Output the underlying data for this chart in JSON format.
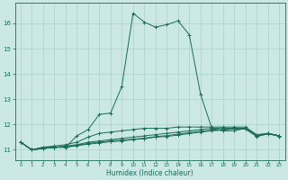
{
  "xlabel": "Humidex (Indice chaleur)",
  "ylabel": "",
  "bg_color": "#cce8e6",
  "grid_color": "#aad0ce",
  "line_color": "#1a6b5a",
  "xlim": [
    -0.5,
    23.5
  ],
  "ylim": [
    10.6,
    16.8
  ],
  "yticks": [
    11,
    12,
    13,
    14,
    15,
    16
  ],
  "xticks": [
    0,
    1,
    2,
    3,
    4,
    5,
    6,
    7,
    8,
    9,
    10,
    11,
    12,
    13,
    14,
    15,
    16,
    17,
    18,
    19,
    20,
    21,
    22,
    23
  ],
  "curve1_x": [
    0,
    1,
    2,
    3,
    4,
    5,
    6,
    7,
    8,
    9,
    10,
    11,
    12,
    13,
    14,
    15,
    16,
    17,
    18,
    19,
    20,
    21,
    22,
    23
  ],
  "curve1_y": [
    11.3,
    11.0,
    11.1,
    11.1,
    11.1,
    11.55,
    11.8,
    12.4,
    12.45,
    13.5,
    16.4,
    16.05,
    15.85,
    15.95,
    16.1,
    15.55,
    13.2,
    11.85,
    11.75,
    11.75,
    11.85,
    11.55,
    11.65,
    11.55
  ],
  "curve2_x": [
    0,
    1,
    2,
    3,
    4,
    5,
    6,
    7,
    8,
    9,
    10,
    11,
    12,
    13,
    14,
    15,
    16,
    17,
    18,
    19,
    20,
    21,
    22,
    23
  ],
  "curve2_y": [
    11.3,
    11.0,
    11.1,
    11.15,
    11.2,
    11.3,
    11.5,
    11.65,
    11.7,
    11.75,
    11.8,
    11.85,
    11.85,
    11.85,
    11.9,
    11.9,
    11.9,
    11.9,
    11.9,
    11.9,
    11.9,
    11.6,
    11.65,
    11.55
  ],
  "curve3_x": [
    0,
    1,
    2,
    3,
    4,
    5,
    6,
    7,
    8,
    9,
    10,
    11,
    12,
    13,
    14,
    15,
    16,
    17,
    18,
    19,
    20,
    21,
    22,
    23
  ],
  "curve3_y": [
    11.3,
    11.0,
    11.05,
    11.1,
    11.15,
    11.2,
    11.3,
    11.35,
    11.4,
    11.45,
    11.5,
    11.55,
    11.6,
    11.65,
    11.7,
    11.75,
    11.8,
    11.85,
    11.85,
    11.85,
    11.85,
    11.55,
    11.65,
    11.55
  ],
  "curve4_x": [
    0,
    1,
    2,
    3,
    4,
    5,
    6,
    7,
    8,
    9,
    10,
    11,
    12,
    13,
    14,
    15,
    16,
    17,
    18,
    19,
    20,
    21,
    22,
    23
  ],
  "curve4_y": [
    11.3,
    11.0,
    11.05,
    11.1,
    11.1,
    11.18,
    11.25,
    11.3,
    11.35,
    11.38,
    11.42,
    11.46,
    11.52,
    11.56,
    11.62,
    11.68,
    11.73,
    11.78,
    11.8,
    11.85,
    11.85,
    11.55,
    11.65,
    11.55
  ],
  "curve5_x": [
    0,
    1,
    2,
    3,
    4,
    5,
    6,
    7,
    8,
    9,
    10,
    11,
    12,
    13,
    14,
    15,
    16,
    17,
    18,
    19,
    20,
    21,
    22,
    23
  ],
  "curve5_y": [
    11.3,
    11.0,
    11.05,
    11.1,
    11.1,
    11.16,
    11.22,
    11.27,
    11.32,
    11.35,
    11.4,
    11.44,
    11.5,
    11.53,
    11.58,
    11.64,
    11.7,
    11.75,
    11.78,
    11.82,
    11.82,
    11.52,
    11.63,
    11.53
  ]
}
